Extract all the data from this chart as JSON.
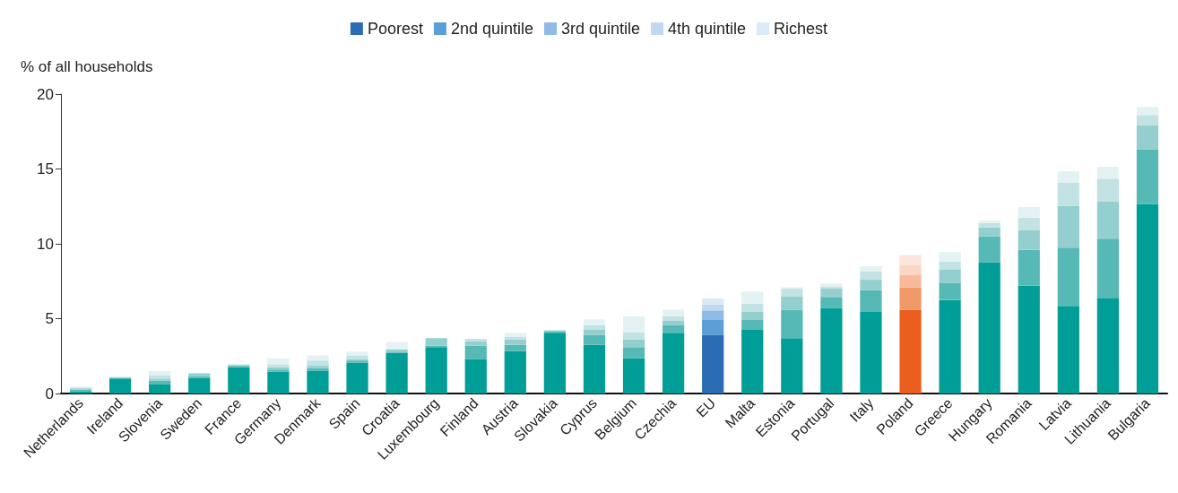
{
  "chart_data": {
    "type": "bar",
    "stacked": true,
    "ylabel": "% of all households",
    "legend": "top",
    "grid": false,
    "categories": [
      "Netherlands",
      "Ireland",
      "Slovenia",
      "Sweden",
      "France",
      "Germany",
      "Denmark",
      "Spain",
      "Croatia",
      "Luxembourg",
      "Finland",
      "Austria",
      "Slovakia",
      "Cyprus",
      "Belgium",
      "Czechia",
      "EU",
      "Malta",
      "Estonia",
      "Portugal",
      "Italy",
      "Poland",
      "Greece",
      "Hungary",
      "Romania",
      "Latvia",
      "Lithuania",
      "Bulgaria"
    ],
    "ylim": [
      0,
      20
    ],
    "yticks": [
      0,
      5,
      10,
      15,
      20
    ],
    "series": [
      {
        "name": "Poorest",
        "color": "#2c6cb4",
        "colors": [
          "#009e96",
          "#009e96",
          "#009e96",
          "#009e96",
          "#009e96",
          "#009e96",
          "#009e96",
          "#009e96",
          "#009e96",
          "#009e96",
          "#009e96",
          "#009e96",
          "#009e96",
          "#009e96",
          "#009e96",
          "#009e96",
          "#2c6cb4",
          "#009e96",
          "#009e96",
          "#009e96",
          "#009e96",
          "#eb5e1e",
          "#009e96",
          "#009e96",
          "#009e96",
          "#009e96",
          "#009e96",
          "#009e96"
        ],
        "values": [
          0.15,
          1.0,
          0.6,
          1.05,
          1.75,
          1.45,
          1.5,
          2.05,
          2.7,
          3.1,
          2.3,
          2.85,
          4.05,
          3.25,
          2.35,
          4.05,
          3.9,
          4.25,
          3.7,
          5.7,
          5.45,
          5.6,
          6.25,
          8.75,
          7.2,
          5.85,
          6.35,
          12.65
        ]
      },
      {
        "name": "2nd quintile",
        "color": "#5b9fd8",
        "colors": [
          "#57b9b6",
          "#57b9b6",
          "#57b9b6",
          "#57b9b6",
          "#57b9b6",
          "#57b9b6",
          "#57b9b6",
          "#57b9b6",
          "#57b9b6",
          "#57b9b6",
          "#57b9b6",
          "#57b9b6",
          "#57b9b6",
          "#57b9b6",
          "#57b9b6",
          "#57b9b6",
          "#5b9fd8",
          "#57b9b6",
          "#57b9b6",
          "#57b9b6",
          "#57b9b6",
          "#f2996a",
          "#57b9b6",
          "#57b9b6",
          "#57b9b6",
          "#57b9b6",
          "#57b9b6",
          "#57b9b6"
        ],
        "values": [
          0.1,
          0.05,
          0.25,
          0.1,
          0.1,
          0.15,
          0.2,
          0.15,
          0.05,
          0.1,
          0.9,
          0.4,
          0.1,
          0.65,
          0.75,
          0.5,
          1.05,
          0.7,
          1.9,
          0.75,
          1.45,
          1.5,
          1.15,
          1.75,
          2.4,
          3.9,
          4.0,
          3.65
        ]
      },
      {
        "name": "3rd quintile",
        "color": "#8fbbe6",
        "colors": [
          "#93cfce",
          "#93cfce",
          "#93cfce",
          "#93cfce",
          "#93cfce",
          "#93cfce",
          "#93cfce",
          "#93cfce",
          "#93cfce",
          "#93cfce",
          "#93cfce",
          "#93cfce",
          "#93cfce",
          "#93cfce",
          "#93cfce",
          "#93cfce",
          "#8fbbe6",
          "#93cfce",
          "#93cfce",
          "#93cfce",
          "#93cfce",
          "#f7b99a",
          "#93cfce",
          "#93cfce",
          "#93cfce",
          "#93cfce",
          "#93cfce",
          "#93cfce"
        ],
        "values": [
          0.1,
          0.05,
          0.15,
          0.2,
          0.05,
          0.15,
          0.15,
          0.1,
          0.2,
          0.5,
          0.3,
          0.35,
          0.05,
          0.35,
          0.5,
          0.3,
          0.6,
          0.5,
          0.9,
          0.55,
          0.7,
          0.8,
          0.9,
          0.6,
          1.3,
          2.8,
          2.5,
          1.6
        ]
      },
      {
        "name": "4th quintile",
        "color": "#c0d8f2",
        "colors": [
          "#c2e2e3",
          "#c2e2e3",
          "#c2e2e3",
          "#c2e2e3",
          "#c2e2e3",
          "#c2e2e3",
          "#c2e2e3",
          "#c2e2e3",
          "#c2e2e3",
          "#c2e2e3",
          "#c2e2e3",
          "#c2e2e3",
          "#c2e2e3",
          "#c2e2e3",
          "#c2e2e3",
          "#c2e2e3",
          "#c0d8f2",
          "#c2e2e3",
          "#c2e2e3",
          "#c2e2e3",
          "#c2e2e3",
          "#fad6c5",
          "#c2e2e3",
          "#c2e2e3",
          "#c2e2e3",
          "#c2e2e3",
          "#c2e2e3",
          "#c2e2e3"
        ],
        "values": [
          0.05,
          null,
          0.2,
          null,
          0.05,
          0.2,
          0.35,
          0.25,
          null,
          0,
          0.15,
          0.2,
          0.05,
          0.3,
          0.5,
          0.3,
          0.4,
          0.55,
          0.5,
          0.15,
          0.55,
          0.7,
          0.5,
          0.3,
          0.85,
          1.55,
          1.5,
          0.7
        ]
      },
      {
        "name": "Richest",
        "color": "#dbe9f8",
        "colors": [
          "#e4f2f3",
          "#e4f2f3",
          "#e4f2f3",
          "#e4f2f3",
          "#e4f2f3",
          "#e4f2f3",
          "#e4f2f3",
          "#e4f2f3",
          "#e4f2f3",
          "#e4f2f3",
          "#e4f2f3",
          "#e4f2f3",
          "#e4f2f3",
          "#e4f2f3",
          "#e4f2f3",
          "#e4f2f3",
          "#dbe9f8",
          "#e4f2f3",
          "#e4f2f3",
          "#e4f2f3",
          "#e4f2f3",
          "#fbe5dc",
          "#e4f2f3",
          "#e4f2f3",
          "#e4f2f3",
          "#e4f2f3",
          "#e4f2f3",
          "#e4f2f3"
        ],
        "values": [
          0.05,
          0.02,
          0.3,
          null,
          0.03,
          0.4,
          0.35,
          0.25,
          0.5,
          0,
          null,
          0.25,
          0,
          0.4,
          1.05,
          0.45,
          0.4,
          0.8,
          0.1,
          0.2,
          0.35,
          0.65,
          0.65,
          0.15,
          0.7,
          0.75,
          0.8,
          0.55
        ]
      }
    ]
  }
}
